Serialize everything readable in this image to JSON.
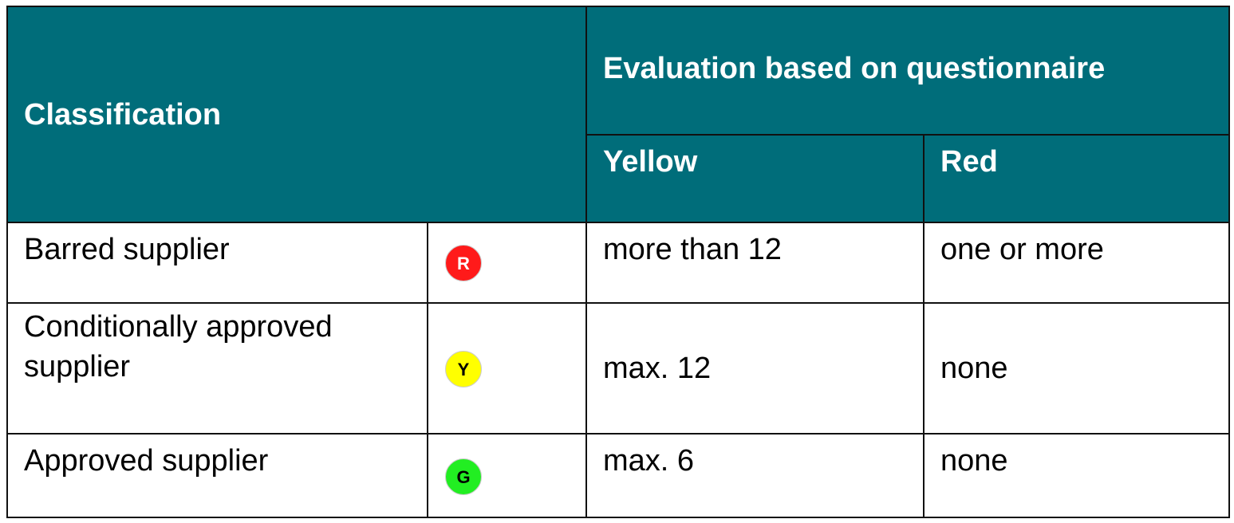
{
  "table": {
    "header": {
      "classification": "Classification",
      "evaluation": "Evaluation based on questionnaire",
      "columns": [
        "Yellow",
        "Red"
      ]
    },
    "rows": [
      {
        "label": "Barred supplier",
        "badge": "R",
        "yellow": "more than 12",
        "red": "one or more"
      },
      {
        "label": "Conditionally approved supplier",
        "badge": "Y",
        "yellow": "max. 12",
        "red": "none"
      },
      {
        "label": "Approved supplier",
        "badge": "G",
        "yellow": "max. 6",
        "red": "none"
      }
    ]
  }
}
